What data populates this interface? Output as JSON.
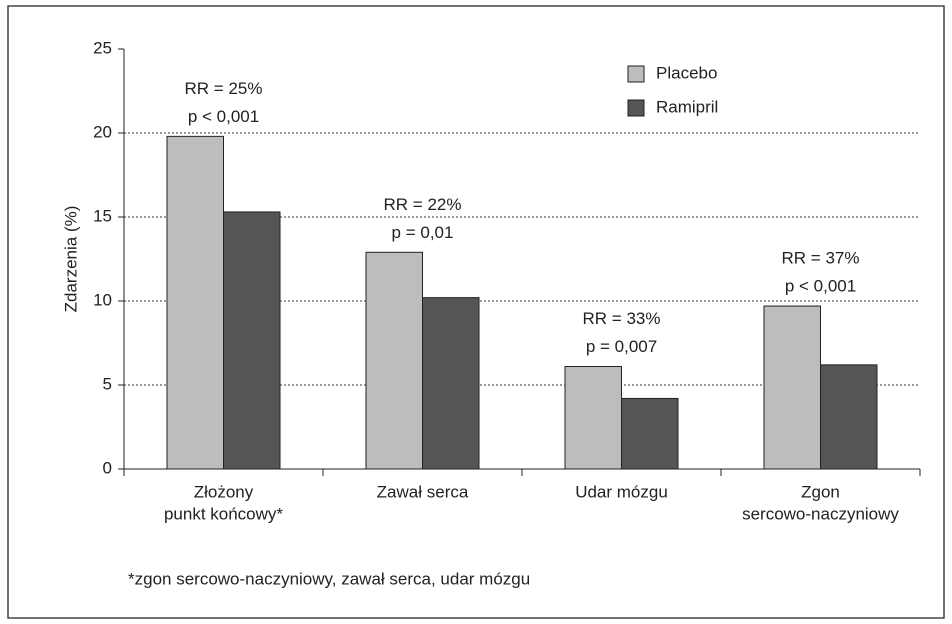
{
  "chart_data": {
    "type": "bar",
    "y_label": "Zdarzenia  (%)",
    "categories": [
      [
        "Złożony",
        "punkt końcowy*"
      ],
      [
        "Zawał serca"
      ],
      [
        "Udar mózgu"
      ],
      [
        "Zgon",
        "sercowo-naczyniowy"
      ]
    ],
    "series": [
      {
        "name": "Placebo",
        "color": "#bdbdbf",
        "values": [
          19.8,
          12.9,
          6.1,
          9.7
        ]
      },
      {
        "name": "Ramipril",
        "color": "#555557",
        "values": [
          15.3,
          10.2,
          4.2,
          6.2
        ]
      }
    ],
    "annotations": [
      [
        "RR = 25%",
        "p < 0,001"
      ],
      [
        "RR = 22%",
        "p = 0,01"
      ],
      [
        "RR = 33%",
        "p = 0,007"
      ],
      [
        "RR = 37%",
        "p < 0,001"
      ]
    ],
    "footnote": "*zgon sercowo-naczyniowy, zawał serca, udar mózgu",
    "ylim": [
      0,
      25
    ],
    "yticks": [
      0,
      5,
      10,
      15,
      20,
      25
    ],
    "grid": true
  }
}
